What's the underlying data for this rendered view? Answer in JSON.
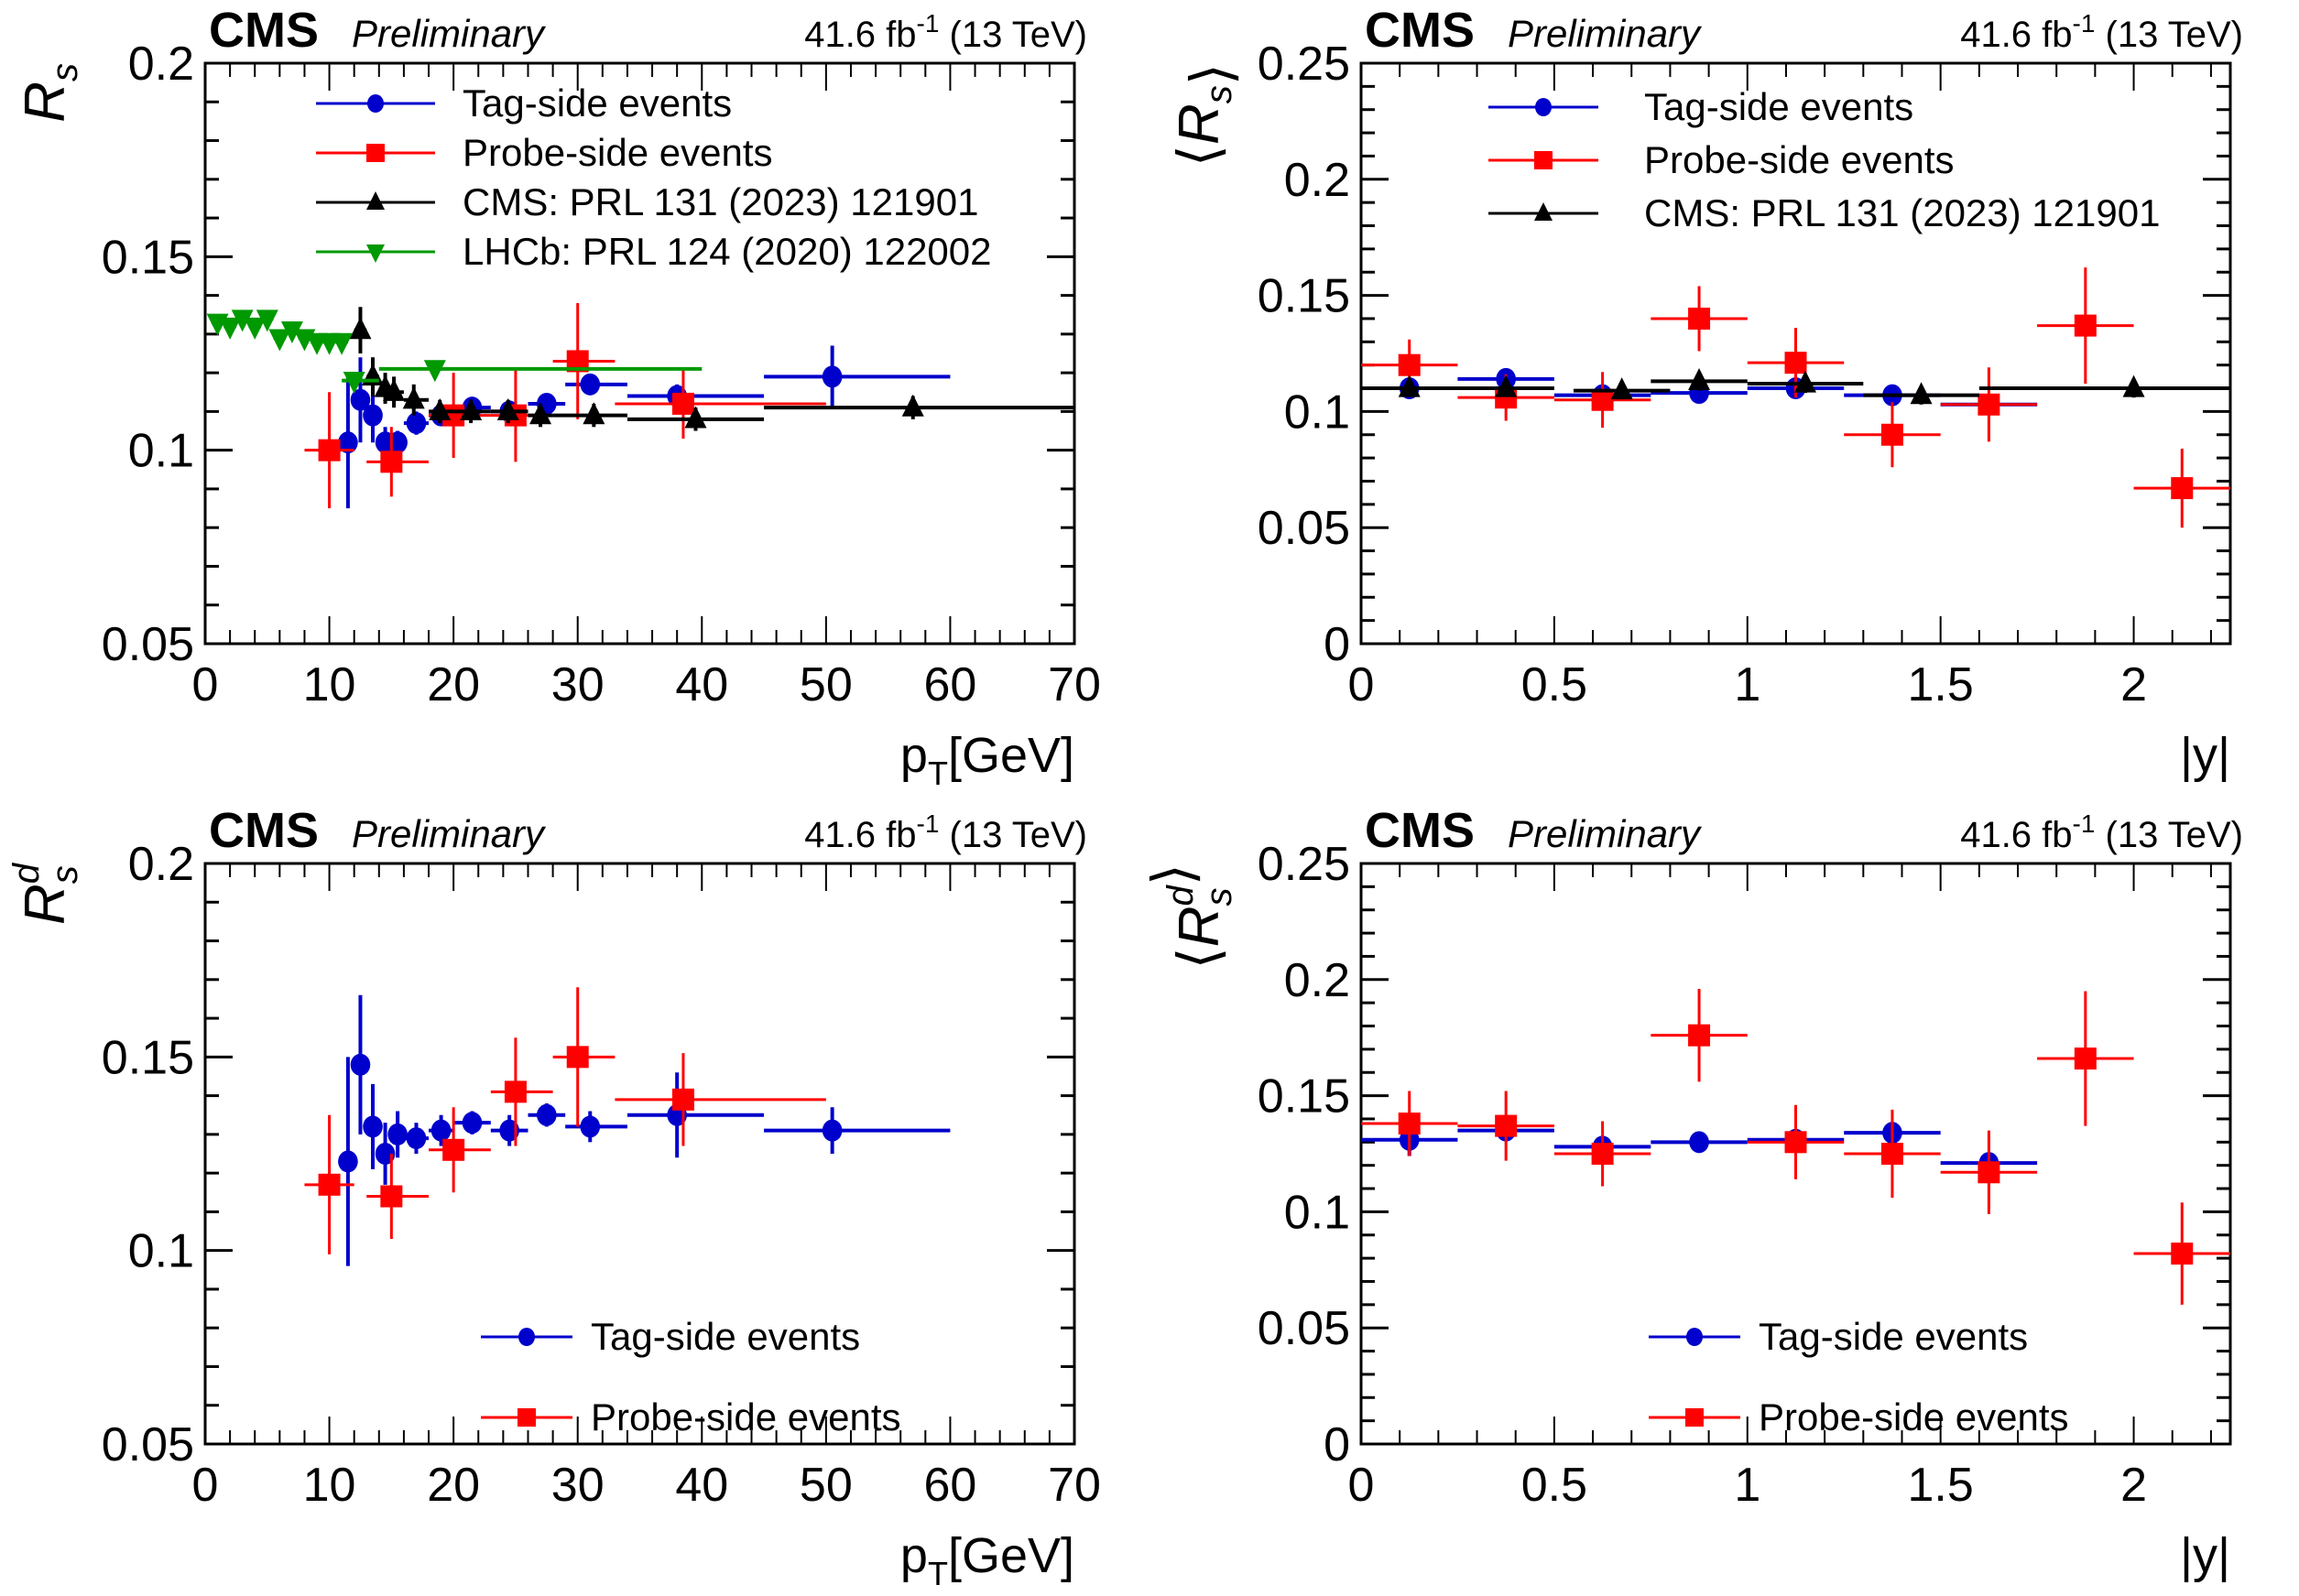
{
  "figure": {
    "experiment_label": "CMS",
    "status_label": "Preliminary",
    "lumi_label": "41.6 fb",
    "lumi_exponent": "-1",
    "energy_label": "(13 TeV)"
  },
  "chart_data": [
    {
      "id": "rs-vs-pt",
      "type": "scatter",
      "title": "CMS Preliminary",
      "xlabel": "p_T[GeV]",
      "ylabel": "R_s",
      "xlim": [
        0,
        70
      ],
      "ylim": [
        0.05,
        0.2
      ],
      "xticks": [
        0,
        10,
        20,
        30,
        40,
        50,
        60,
        70
      ],
      "xtick_labels": [
        "0",
        "10",
        "20",
        "30",
        "40",
        "50",
        "60",
        "70"
      ],
      "yticks": [
        0.05,
        0.1,
        0.15,
        0.2
      ],
      "ytick_labels": [
        "0.05",
        "0.1",
        "0.15",
        "0.2"
      ],
      "grid": false,
      "legend_position": "top",
      "series": [
        {
          "name": "Tag-side events",
          "color": "#0000cc",
          "marker": "circle",
          "x": [
            11.5,
            12.5,
            13.5,
            14.5,
            15.5,
            17,
            19,
            21.5,
            24.5,
            27.5,
            31,
            38,
            50.5
          ],
          "xlo": [
            11,
            12,
            13,
            14,
            15,
            16,
            18,
            20,
            23,
            26,
            29,
            34,
            45
          ],
          "xhi": [
            12,
            13,
            14,
            15,
            16,
            18,
            20,
            23,
            26,
            29,
            34,
            45,
            60
          ],
          "y": [
            0.102,
            0.113,
            0.109,
            0.102,
            0.102,
            0.107,
            0.109,
            0.111,
            0.11,
            0.112,
            0.117,
            0.114,
            0.119
          ],
          "yerr": [
            0.017,
            0.011,
            0.007,
            0.004,
            0.003,
            0.003,
            0.002,
            0.002,
            0.002,
            0.002,
            0.002,
            0.003,
            0.008
          ]
        },
        {
          "name": "Probe-side events",
          "color": "#ff0000",
          "marker": "square",
          "x": [
            10,
            15,
            20,
            25,
            30,
            38.5
          ],
          "xlo": [
            8,
            13,
            18,
            23,
            28,
            33
          ],
          "xhi": [
            12,
            18,
            23,
            28,
            33,
            50
          ],
          "y": [
            0.1,
            0.097,
            0.109,
            0.109,
            0.123,
            0.112
          ],
          "yerr": [
            0.015,
            0.009,
            0.011,
            0.012,
            0.015,
            0.009
          ]
        },
        {
          "name": "CMS: PRL 131 (2023) 121901",
          "color": "#000000",
          "marker": "triangle-up",
          "x": [
            12.5,
            13.5,
            14.5,
            15.2,
            16.8,
            18.9,
            21.4,
            24.4,
            27,
            31.3,
            39.5,
            57
          ],
          "xlo": [
            12,
            13,
            14,
            15,
            16,
            18,
            20,
            23,
            26,
            28,
            34,
            45
          ],
          "xhi": [
            13,
            14,
            15,
            16,
            18,
            20,
            23,
            26,
            28,
            34,
            45,
            70
          ],
          "y": [
            0.131,
            0.119,
            0.116,
            0.115,
            0.113,
            0.11,
            0.11,
            0.11,
            0.109,
            0.109,
            0.108,
            0.111
          ],
          "yerr": [
            0.006,
            0.005,
            0.004,
            0.004,
            0.004,
            0.003,
            0.003,
            0.003,
            0.003,
            0.003,
            0.003,
            0.003
          ]
        },
        {
          "name": "LHCb: PRL 124 (2020) 122002",
          "color": "#009900",
          "marker": "triangle-down",
          "x": [
            1,
            2,
            3,
            4,
            5,
            6,
            7,
            8,
            9,
            10,
            11,
            12,
            18.5
          ],
          "xlo": [
            0.5,
            1.5,
            2.5,
            3.5,
            4.5,
            5.5,
            6.5,
            7.5,
            8.5,
            9.5,
            10.5,
            11,
            14
          ],
          "xhi": [
            1.5,
            2.5,
            3.5,
            4.5,
            5.5,
            6.5,
            7.5,
            8.5,
            9.5,
            10.5,
            11.5,
            14,
            40
          ],
          "y": [
            0.133,
            0.132,
            0.134,
            0.132,
            0.134,
            0.129,
            0.131,
            0.129,
            0.128,
            0.128,
            0.128,
            0.118,
            0.121
          ],
          "yerr": [
            0.001,
            0.001,
            0.001,
            0.001,
            0.001,
            0.001,
            0.001,
            0.001,
            0.001,
            0.001,
            0.001,
            0.001,
            0.001
          ]
        }
      ]
    },
    {
      "id": "rs-vs-y",
      "type": "scatter",
      "title": "CMS Preliminary",
      "xlabel": "|y|",
      "ylabel": "⟨R_s⟩",
      "xlim": [
        0,
        2.25
      ],
      "ylim": [
        0,
        0.25
      ],
      "xticks": [
        0,
        0.5,
        1,
        1.5,
        2
      ],
      "xtick_labels": [
        "0",
        "0.5",
        "1",
        "1.5",
        "2"
      ],
      "yticks": [
        0,
        0.05,
        0.1,
        0.15,
        0.2,
        0.25
      ],
      "ytick_labels": [
        "0",
        "0.05",
        "0.1",
        "0.15",
        "0.2",
        "0.25"
      ],
      "grid": false,
      "legend_position": "top",
      "series": [
        {
          "name": "Tag-side events",
          "color": "#0000cc",
          "marker": "circle",
          "x": [
            0.125,
            0.375,
            0.625,
            0.875,
            1.125,
            1.375,
            1.625
          ],
          "xlo": [
            0,
            0.25,
            0.5,
            0.75,
            1,
            1.25,
            1.5
          ],
          "xhi": [
            0.25,
            0.5,
            0.75,
            1,
            1.25,
            1.5,
            1.75
          ],
          "y": [
            0.11,
            0.114,
            0.107,
            0.108,
            0.11,
            0.107,
            0.103
          ],
          "yerr": [
            0.002,
            0.002,
            0.002,
            0.002,
            0.002,
            0.002,
            0.002
          ]
        },
        {
          "name": "Probe-side events",
          "color": "#ff0000",
          "marker": "square",
          "x": [
            0.125,
            0.375,
            0.625,
            0.875,
            1.125,
            1.375,
            1.625,
            1.875,
            2.125
          ],
          "xlo": [
            0,
            0.25,
            0.5,
            0.75,
            1,
            1.25,
            1.5,
            1.75,
            2
          ],
          "xhi": [
            0.25,
            0.5,
            0.75,
            1,
            1.25,
            1.5,
            1.75,
            2,
            2.25
          ],
          "y": [
            0.12,
            0.106,
            0.105,
            0.14,
            0.121,
            0.09,
            0.103,
            0.137,
            0.067
          ],
          "yerr": [
            0.011,
            0.01,
            0.012,
            0.014,
            0.015,
            0.014,
            0.016,
            0.025,
            0.017
          ]
        },
        {
          "name": "CMS: PRL 131 (2023) 121901",
          "color": "#000000",
          "marker": "triangle-up",
          "x": [
            0.125,
            0.375,
            0.675,
            0.875,
            1.15,
            1.45,
            2.0
          ],
          "xlo": [
            0,
            0.25,
            0.55,
            0.75,
            1,
            1.3,
            1.6
          ],
          "xhi": [
            0.25,
            0.5,
            0.8,
            1,
            1.3,
            1.6,
            2.25
          ],
          "y": [
            0.11,
            0.11,
            0.109,
            0.113,
            0.112,
            0.107,
            0.11
          ],
          "yerr": [
            0.003,
            0.003,
            0.003,
            0.004,
            0.004,
            0.004,
            0.004
          ]
        }
      ]
    },
    {
      "id": "rsd-vs-pt",
      "type": "scatter",
      "title": "CMS Preliminary",
      "xlabel": "p_T[GeV]",
      "ylabel": "R_s^d",
      "xlim": [
        0,
        70
      ],
      "ylim": [
        0.05,
        0.2
      ],
      "xticks": [
        0,
        10,
        20,
        30,
        40,
        50,
        60,
        70
      ],
      "xtick_labels": [
        "0",
        "10",
        "20",
        "30",
        "40",
        "50",
        "60",
        "70"
      ],
      "yticks": [
        0.05,
        0.1,
        0.15,
        0.2
      ],
      "ytick_labels": [
        "0.05",
        "0.1",
        "0.15",
        "0.2"
      ],
      "grid": false,
      "legend_position": "bottom-center",
      "series": [
        {
          "name": "Tag-side events",
          "color": "#0000cc",
          "marker": "circle",
          "x": [
            11.5,
            12.5,
            13.5,
            14.5,
            15.5,
            17,
            19,
            21.5,
            24.5,
            27.5,
            31,
            38,
            50.5
          ],
          "xlo": [
            11,
            12,
            13,
            14,
            15,
            16,
            18,
            20,
            23,
            26,
            29,
            34,
            45
          ],
          "xhi": [
            12,
            13,
            14,
            15,
            16,
            18,
            20,
            23,
            26,
            29,
            34,
            45,
            60
          ],
          "y": [
            0.123,
            0.148,
            0.132,
            0.125,
            0.13,
            0.129,
            0.131,
            0.133,
            0.131,
            0.135,
            0.132,
            0.135,
            0.131
          ],
          "yerr": [
            0.027,
            0.018,
            0.011,
            0.008,
            0.006,
            0.004,
            0.004,
            0.003,
            0.004,
            0.003,
            0.004,
            0.011,
            0.006
          ]
        },
        {
          "name": "Probe-side events",
          "color": "#ff0000",
          "marker": "square",
          "x": [
            10,
            15,
            20,
            25,
            30,
            38.5
          ],
          "xlo": [
            8,
            13,
            18,
            23,
            28,
            33
          ],
          "xhi": [
            12,
            18,
            23,
            28,
            33,
            50
          ],
          "y": [
            0.117,
            0.114,
            0.126,
            0.141,
            0.15,
            0.139
          ],
          "yerr": [
            0.018,
            0.011,
            0.011,
            0.014,
            0.018,
            0.012
          ]
        }
      ]
    },
    {
      "id": "rsd-vs-y",
      "type": "scatter",
      "title": "CMS Preliminary",
      "xlabel": "|y|",
      "ylabel": "⟨R_s^d⟩",
      "xlim": [
        0,
        2.25
      ],
      "ylim": [
        0,
        0.25
      ],
      "xticks": [
        0,
        0.5,
        1,
        1.5,
        2
      ],
      "xtick_labels": [
        "0",
        "0.5",
        "1",
        "1.5",
        "2"
      ],
      "yticks": [
        0,
        0.05,
        0.1,
        0.15,
        0.2,
        0.25
      ],
      "ytick_labels": [
        "0",
        "0.05",
        "0.1",
        "0.15",
        "0.2",
        "0.25"
      ],
      "grid": false,
      "legend_position": "bottom-center",
      "series": [
        {
          "name": "Tag-side events",
          "color": "#0000cc",
          "marker": "circle",
          "x": [
            0.125,
            0.375,
            0.625,
            0.875,
            1.125,
            1.375,
            1.625
          ],
          "xlo": [
            0,
            0.25,
            0.5,
            0.75,
            1,
            1.25,
            1.5
          ],
          "xhi": [
            0.25,
            0.5,
            0.75,
            1,
            1.25,
            1.5,
            1.75
          ],
          "y": [
            0.131,
            0.135,
            0.128,
            0.13,
            0.131,
            0.134,
            0.121
          ],
          "yerr": [
            0.007,
            0.003,
            0.002,
            0.002,
            0.002,
            0.003,
            0.002
          ]
        },
        {
          "name": "Probe-side events",
          "color": "#ff0000",
          "marker": "square",
          "x": [
            0.125,
            0.375,
            0.625,
            0.875,
            1.125,
            1.375,
            1.625,
            1.875,
            2.125
          ],
          "xlo": [
            0,
            0.25,
            0.5,
            0.75,
            1,
            1.25,
            1.5,
            1.75,
            2
          ],
          "xhi": [
            0.25,
            0.5,
            0.75,
            1,
            1.25,
            1.5,
            1.75,
            2,
            2.25
          ],
          "y": [
            0.138,
            0.137,
            0.125,
            0.176,
            0.13,
            0.125,
            0.117,
            0.166,
            0.082
          ],
          "yerr": [
            0.014,
            0.015,
            0.014,
            0.02,
            0.016,
            0.019,
            0.018,
            0.029,
            0.022
          ]
        }
      ]
    }
  ]
}
